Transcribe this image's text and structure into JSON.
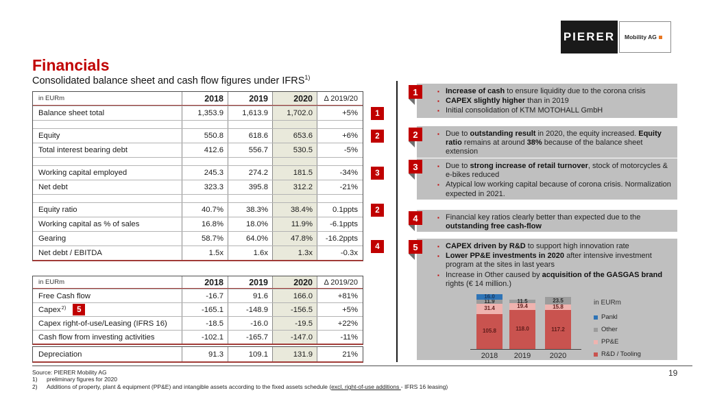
{
  "logo": {
    "brand": "PIERER",
    "unit": "Mobility AG"
  },
  "page": {
    "title": "Financials",
    "subtitle": "Consolidated balance sheet and cash flow figures under IFRS",
    "subtitle_sup": "1)",
    "page_number": "19"
  },
  "colors": {
    "accent_red": "#C00000",
    "rule_red": "#A03A36",
    "note_box_gray": "#BFBFBF",
    "highlight_column_beige": "#E9E9DB",
    "logo_orange": "#E87722"
  },
  "tables": {
    "columns": [
      "in EURm",
      "2018",
      "2019",
      "2020",
      "Δ 2019/20"
    ],
    "table1": {
      "header": true,
      "rows": [
        {
          "label": "Balance sheet total",
          "values": [
            "1,353.9",
            "1,613.9",
            "1,702.0",
            "+5%"
          ],
          "badge": "1"
        },
        {
          "spacer": true
        },
        {
          "label": "Equity",
          "values": [
            "550.8",
            "618.6",
            "653.6",
            "+6%"
          ],
          "badge": "2"
        },
        {
          "label": "Total interest bearing debt",
          "values": [
            "412.6",
            "556.7",
            "530.5",
            "-5%"
          ]
        },
        {
          "spacer": true
        },
        {
          "label": "Working capital employed",
          "values": [
            "245.3",
            "274.2",
            "181.5",
            "-34%"
          ],
          "badge": "3"
        },
        {
          "label": "Net debt",
          "values": [
            "323.3",
            "395.8",
            "312.2",
            "-21%"
          ]
        },
        {
          "spacer": true
        },
        {
          "label": "Equity ratio",
          "values": [
            "40.7%",
            "38.3%",
            "38.4%",
            "0.1ppts"
          ],
          "badge": "2"
        },
        {
          "label": "Working capital as % of sales",
          "values": [
            "16.8%",
            "18.0%",
            "11.9%",
            "-6.1ppts"
          ]
        },
        {
          "label": "Gearing",
          "values": [
            "58.7%",
            "64.0%",
            "47.8%",
            "-16.2ppts"
          ],
          "badge": "4",
          "badge_offset": true
        },
        {
          "label": "Net debt / EBITDA",
          "values": [
            "1.5x",
            "1.6x",
            "1.3x",
            "-0.3x"
          ]
        }
      ]
    },
    "table2": {
      "header": true,
      "rows": [
        {
          "label": "Free Cash flow",
          "values": [
            "-16.7",
            "91.6",
            "166.0",
            "+81%"
          ]
        },
        {
          "label": "Capex",
          "label_sup": "2)",
          "badge_inline": "5",
          "values": [
            "-165.1",
            "-148.9",
            "-156.5",
            "+5%"
          ]
        },
        {
          "label": "Capex right-of-use/Leasing (IFRS 16)",
          "values": [
            "-18.5",
            "-16.0",
            "-19.5",
            "+22%"
          ]
        },
        {
          "label": "Cash flow from investing activities",
          "values": [
            "-102.1",
            "-165.7",
            "-147.0",
            "-11%"
          ]
        }
      ]
    },
    "table3": {
      "header": false,
      "rows": [
        {
          "label": "Depreciation",
          "values": [
            "91.3",
            "109.1",
            "131.9",
            "21%"
          ]
        }
      ]
    }
  },
  "notes": [
    {
      "num": "1",
      "bullets": [
        [
          {
            "t": "Increase of cash",
            "b": 1
          },
          {
            "t": " to ensure liquidity due to the corona crisis"
          }
        ],
        [
          {
            "t": "CAPEX slightly higher",
            "b": 1
          },
          {
            "t": " than in 2019"
          }
        ],
        [
          {
            "t": "Initial consolidation of KTM MOTOHALL GmbH"
          }
        ]
      ]
    },
    {
      "num": "2",
      "bullets": [
        [
          {
            "t": "Due to "
          },
          {
            "t": "outstanding result",
            "b": 1
          },
          {
            "t": " in 2020, the equity increased. "
          },
          {
            "t": "Equity ratio",
            "b": 1
          },
          {
            "t": " remains at around "
          },
          {
            "t": "38%",
            "b": 1
          },
          {
            "t": " because of the balance sheet extension"
          }
        ]
      ]
    },
    {
      "num": "3",
      "bullets": [
        [
          {
            "t": "Due to "
          },
          {
            "t": "strong increase of retail turnover",
            "b": 1
          },
          {
            "t": ", stock of motorcycles & e-bikes reduced"
          }
        ],
        [
          {
            "t": "Atypical low working capital because of corona crisis. Normalization expected in 2021."
          }
        ]
      ]
    },
    {
      "num": "4",
      "bullets": [
        [
          {
            "t": "Financial key ratios clearly better than expected due to the "
          },
          {
            "t": "outstanding free cash-flow",
            "b": 1
          }
        ]
      ]
    },
    {
      "num": "5",
      "has_chart": true,
      "bullets": [
        [
          {
            "t": "CAPEX driven by R&D",
            "b": 1
          },
          {
            "t": " to support high innovation rate"
          }
        ],
        [
          {
            "t": "Lower PP&E investments in 2020",
            "b": 1
          },
          {
            "t": " after intensive investment program at the sites in last years"
          }
        ],
        [
          {
            "t": "Increase in Other caused by "
          },
          {
            "t": "acquisition of the GASGAS brand",
            "b": 1
          },
          {
            "t": " rights (€ 14 million.)"
          }
        ]
      ]
    }
  ],
  "chart_data": {
    "type": "bar",
    "stacked": true,
    "unit_label": "in EURm",
    "categories": [
      "2018",
      "2019",
      "2020"
    ],
    "series": [
      {
        "name": "R&D / Tooling",
        "color": "#C9534F",
        "values": [
          105.8,
          118.0,
          117.2
        ]
      },
      {
        "name": "PP&E",
        "color": "#EFB3AF",
        "values": [
          31.4,
          19.4,
          15.8
        ]
      },
      {
        "name": "Other",
        "color": "#9C9C9C",
        "values": [
          11.9,
          11.5,
          23.5
        ]
      },
      {
        "name": "Pankl",
        "color": "#2E74B6",
        "values": [
          16.0,
          null,
          null
        ]
      }
    ],
    "legend_order": [
      "Pankl",
      "Other",
      "PP&E",
      "R&D / Tooling"
    ],
    "legend_position": "right",
    "value_labels": true,
    "ylim": [
      0,
      170
    ],
    "grid": false
  },
  "footer": {
    "source": "Source: PIERER Mobility AG",
    "footnotes": [
      {
        "num": "1)",
        "segments": [
          {
            "t": "preliminary figures for 2020"
          }
        ]
      },
      {
        "num": "2)",
        "segments": [
          {
            "t": "Additions of property, plant & equipment (PP&E) and intangible assets according to the fixed assets schedule ("
          },
          {
            "t": "excl. right-of-use additions ",
            "u": 1
          },
          {
            "t": "- IFRS 16 leasing)"
          }
        ]
      }
    ]
  }
}
